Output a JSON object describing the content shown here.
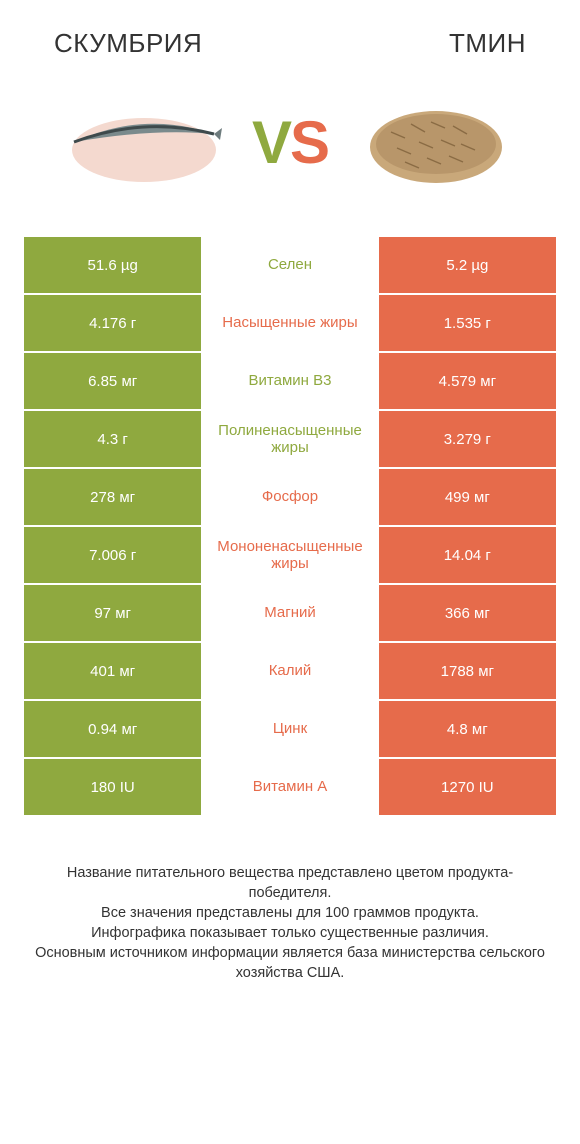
{
  "header": {
    "left_title": "СКУМБРИЯ",
    "right_title": "ТМИН",
    "vs_v": "V",
    "vs_s": "S"
  },
  "colors": {
    "green": "#8fa93f",
    "orange": "#e66b4b",
    "white": "#ffffff",
    "text": "#333333"
  },
  "rows": [
    {
      "left": "51.6 µg",
      "label": "Селен",
      "winner": "green",
      "right": "5.2 µg"
    },
    {
      "left": "4.176 г",
      "label": "Насыщенные жиры",
      "winner": "orange",
      "right": "1.535 г"
    },
    {
      "left": "6.85 мг",
      "label": "Витамин B3",
      "winner": "green",
      "right": "4.579 мг"
    },
    {
      "left": "4.3 г",
      "label": "Полиненасыщенные жиры",
      "winner": "green",
      "right": "3.279 г"
    },
    {
      "left": "278 мг",
      "label": "Фосфор",
      "winner": "orange",
      "right": "499 мг"
    },
    {
      "left": "7.006 г",
      "label": "Мононенасыщенные жиры",
      "winner": "orange",
      "right": "14.04 г"
    },
    {
      "left": "97 мг",
      "label": "Магний",
      "winner": "orange",
      "right": "366 мг"
    },
    {
      "left": "401 мг",
      "label": "Калий",
      "winner": "orange",
      "right": "1788 мг"
    },
    {
      "left": "0.94 мг",
      "label": "Цинк",
      "winner": "orange",
      "right": "4.8 мг"
    },
    {
      "left": "180 IU",
      "label": "Витамин A",
      "winner": "orange",
      "right": "1270 IU"
    }
  ],
  "footer": {
    "line1": "Название питательного вещества представлено цветом продукта-победителя.",
    "line2": "Все значения представлены для 100 граммов продукта.",
    "line3": "Инфографика показывает только существенные различия.",
    "line4": "Основным источником информации является база министерства сельского хозяйства США."
  }
}
